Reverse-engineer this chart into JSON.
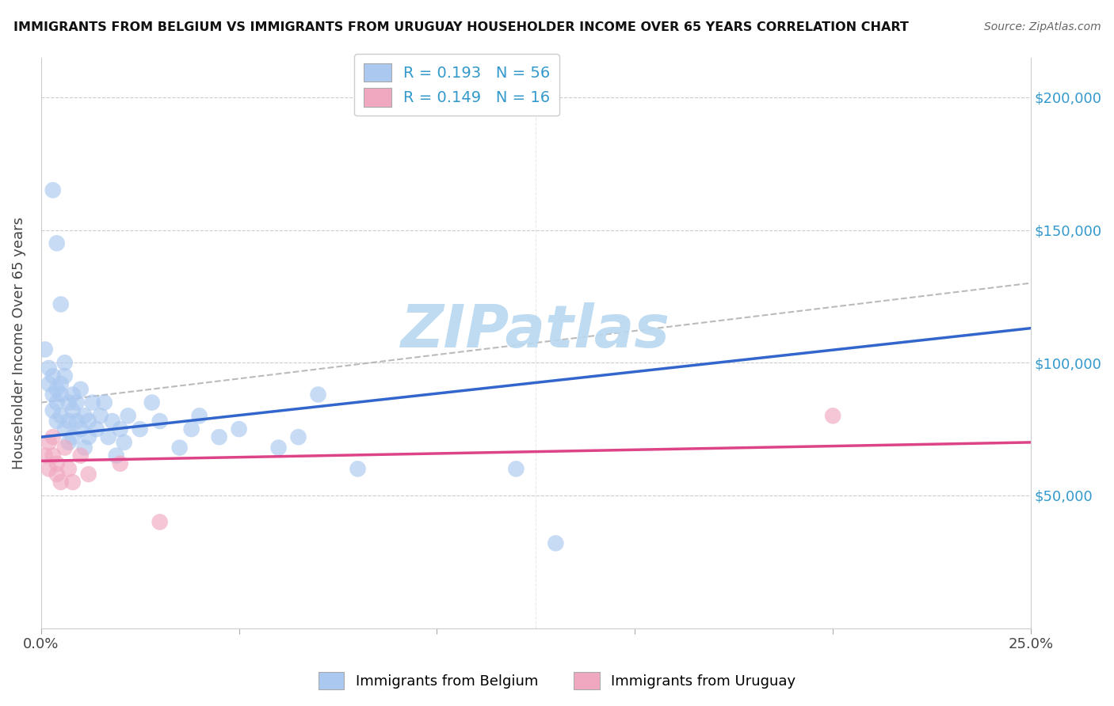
{
  "title": "IMMIGRANTS FROM BELGIUM VS IMMIGRANTS FROM URUGUAY HOUSEHOLDER INCOME OVER 65 YEARS CORRELATION CHART",
  "source": "Source: ZipAtlas.com",
  "ylabel": "Householder Income Over 65 years",
  "xlim": [
    0.0,
    0.25
  ],
  "ylim": [
    0,
    215000
  ],
  "legend_r_belgium": "R = 0.193",
  "legend_n_belgium": "N = 56",
  "legend_r_uruguay": "R = 0.149",
  "legend_n_uruguay": "N = 16",
  "belgium_color": "#aac8f0",
  "uruguay_color": "#f0a8c0",
  "belgium_line_color": "#3366cc",
  "uruguay_line_color": "#dd4488",
  "dash_line_color": "#aaaaaa",
  "watermark": "ZIPatlas",
  "watermark_color": "#b8d8f0",
  "background_color": "#ffffff",
  "grid_color": "#cccccc",
  "belgium_x": [
    0.001,
    0.002,
    0.002,
    0.003,
    0.003,
    0.003,
    0.004,
    0.004,
    0.004,
    0.005,
    0.005,
    0.005,
    0.006,
    0.006,
    0.006,
    0.007,
    0.007,
    0.007,
    0.008,
    0.008,
    0.008,
    0.009,
    0.009,
    0.01,
    0.01,
    0.011,
    0.011,
    0.012,
    0.012,
    0.013,
    0.014,
    0.015,
    0.016,
    0.017,
    0.018,
    0.019,
    0.02,
    0.021,
    0.022,
    0.025,
    0.028,
    0.03,
    0.035,
    0.038,
    0.04,
    0.045,
    0.05,
    0.06,
    0.065,
    0.07,
    0.08,
    0.12,
    0.003,
    0.004,
    0.005,
    0.13
  ],
  "belgium_y": [
    105000,
    98000,
    92000,
    88000,
    95000,
    82000,
    90000,
    85000,
    78000,
    92000,
    88000,
    80000,
    95000,
    100000,
    75000,
    85000,
    78000,
    70000,
    82000,
    88000,
    72000,
    78000,
    85000,
    90000,
    75000,
    80000,
    68000,
    78000,
    72000,
    85000,
    75000,
    80000,
    85000,
    72000,
    78000,
    65000,
    75000,
    70000,
    80000,
    75000,
    85000,
    78000,
    68000,
    75000,
    80000,
    72000,
    75000,
    68000,
    72000,
    88000,
    60000,
    60000,
    165000,
    145000,
    122000,
    32000
  ],
  "uruguay_x": [
    0.001,
    0.002,
    0.002,
    0.003,
    0.003,
    0.004,
    0.004,
    0.005,
    0.006,
    0.007,
    0.008,
    0.01,
    0.012,
    0.02,
    0.03,
    0.2
  ],
  "uruguay_y": [
    65000,
    70000,
    60000,
    72000,
    65000,
    58000,
    62000,
    55000,
    68000,
    60000,
    55000,
    65000,
    58000,
    62000,
    40000,
    80000
  ],
  "belgium_line_x": [
    0.0,
    0.25
  ],
  "belgium_line_y": [
    72000,
    113000
  ],
  "uruguay_line_x": [
    0.0,
    0.25
  ],
  "uruguay_line_y": [
    63000,
    70000
  ],
  "dash_line_x": [
    0.0,
    0.25
  ],
  "dash_line_y": [
    85000,
    130000
  ]
}
